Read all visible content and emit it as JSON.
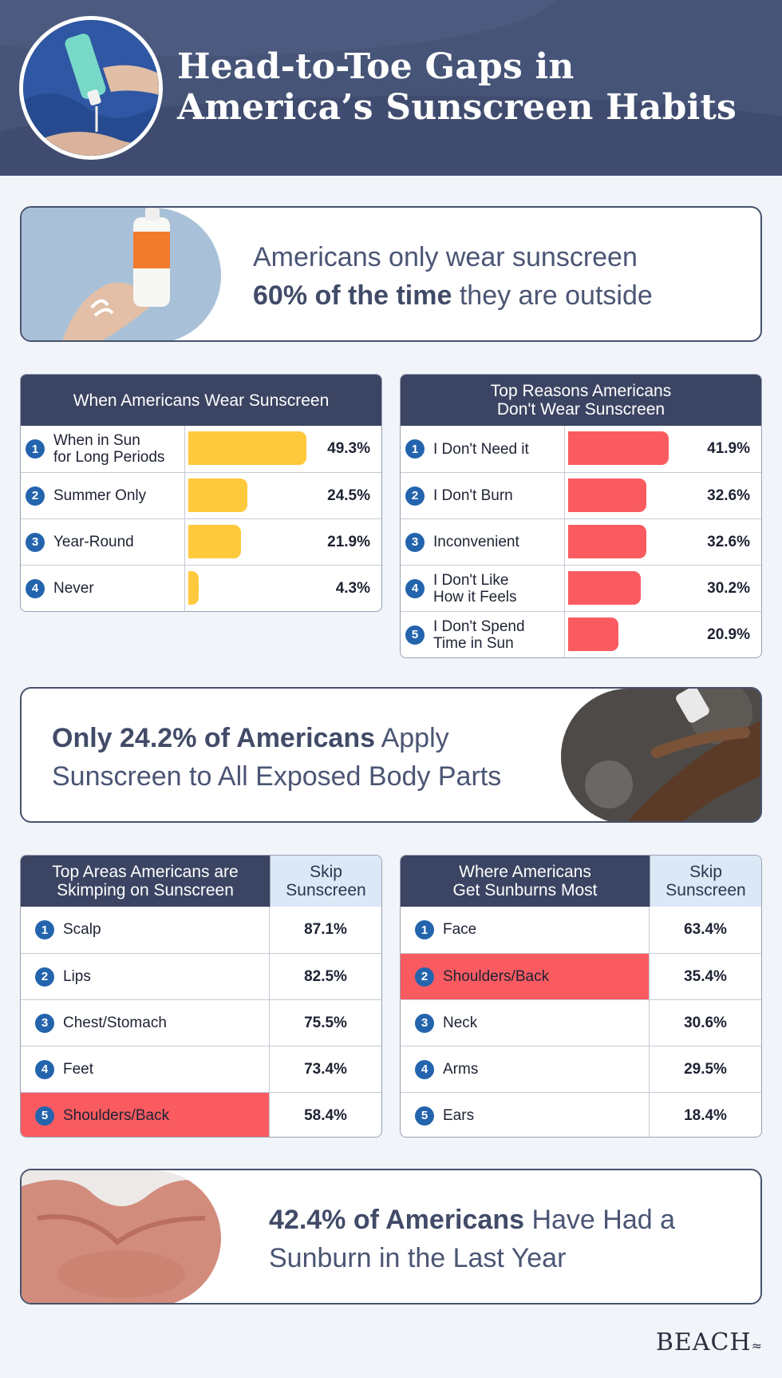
{
  "header": {
    "title_line1": "Head-to-Toe Gaps in",
    "title_line2": "America’s Sunscreen Habits"
  },
  "stat1": {
    "line1": "Americans only wear sunscreen",
    "bold": "60% of the time",
    "rest": " they are outside"
  },
  "stat2": {
    "bold": "Only 24.2% of Americans",
    "rest1": " Apply",
    "line2": "Sunscreen to All Exposed Body Parts"
  },
  "stat3": {
    "bold": "42.4% of Americans",
    "rest1": " Have Had a",
    "line2": "Sunburn in the Last Year"
  },
  "colors": {
    "header": "#465478",
    "table_header": "#3b4462",
    "yellow_bar": "#ffc93c",
    "red_bar": "#fa5b61",
    "number_badge": "#2364ad",
    "skip_header": "#dbe8f6"
  },
  "chart_data": [
    {
      "type": "bar",
      "title": "When Americans Wear Sunscreen",
      "categories": [
        "When in Sun for Long Periods",
        "Summer Only",
        "Year-Round",
        "Never"
      ],
      "label_lines": [
        [
          "When in Sun",
          "for Long Periods"
        ],
        [
          "Summer Only"
        ],
        [
          "Year-Round"
        ],
        [
          "Never"
        ]
      ],
      "values": [
        49.3,
        24.5,
        21.9,
        4.3
      ],
      "value_labels": [
        "49.3%",
        "24.5%",
        "21.9%",
        "4.3%"
      ],
      "xlim": [
        0,
        50
      ]
    },
    {
      "type": "bar",
      "title": "Top Reasons Americans Don't Wear Sunscreen",
      "title_lines": [
        "Top Reasons Americans",
        "Don't Wear Sunscreen"
      ],
      "categories": [
        "I Don't Need it",
        "I Don't Burn",
        "Inconvenient",
        "I Don't Like How it Feels",
        "I Don't Spend Time in Sun"
      ],
      "label_lines": [
        [
          "I Don't Need it"
        ],
        [
          "I Don't Burn"
        ],
        [
          "Inconvenient"
        ],
        [
          "I Don't Like",
          "How it Feels"
        ],
        [
          "I Don't Spend",
          "Time in Sun"
        ]
      ],
      "values": [
        41.9,
        32.6,
        32.6,
        30.2,
        20.9
      ],
      "value_labels": [
        "41.9%",
        "32.6%",
        "32.6%",
        "30.2%",
        "20.9%"
      ],
      "xlim": [
        0,
        50
      ]
    },
    {
      "type": "table",
      "title_lines": [
        "Top Areas Americans are",
        "Skimping on Sunscreen"
      ],
      "value_header_lines": [
        "Skip",
        "Sunscreen"
      ],
      "rows": [
        {
          "label": "Scalp",
          "value": "87.1%",
          "highlight": false
        },
        {
          "label": "Lips",
          "value": "82.5%",
          "highlight": false
        },
        {
          "label": "Chest/Stomach",
          "value": "75.5%",
          "highlight": false
        },
        {
          "label": "Feet",
          "value": "73.4%",
          "highlight": false
        },
        {
          "label": "Shoulders/Back",
          "value": "58.4%",
          "highlight": true
        }
      ]
    },
    {
      "type": "table",
      "title_lines": [
        "Where Americans",
        "Get Sunburns Most"
      ],
      "value_header_lines": [
        "Skip",
        "Sunscreen"
      ],
      "rows": [
        {
          "label": "Face",
          "value": "63.4%",
          "highlight": false
        },
        {
          "label": "Shoulders/Back",
          "value": "35.4%",
          "highlight": true
        },
        {
          "label": "Neck",
          "value": "30.6%",
          "highlight": false
        },
        {
          "label": "Arms",
          "value": "29.5%",
          "highlight": false
        },
        {
          "label": "Ears",
          "value": "18.4%",
          "highlight": false
        }
      ]
    }
  ],
  "brand": {
    "name": "BEACH",
    "mark": "≈"
  }
}
